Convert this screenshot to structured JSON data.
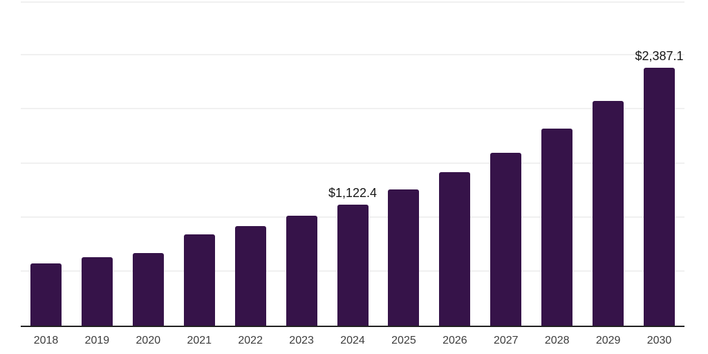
{
  "chart_data": {
    "type": "bar",
    "title": "",
    "xlabel": "",
    "ylabel": "",
    "categories": [
      "2018",
      "2019",
      "2020",
      "2021",
      "2022",
      "2023",
      "2024",
      "2025",
      "2026",
      "2027",
      "2028",
      "2029",
      "2030"
    ],
    "values": [
      575,
      636,
      674,
      847,
      924,
      1019,
      1122.4,
      1263,
      1420,
      1601,
      1825,
      2082,
      2387.1
    ],
    "data_labels": {
      "2024": "$1,122.4",
      "2030": "$2,387.1"
    },
    "ylim": [
      0,
      3000
    ],
    "gridline_interval": 500,
    "grid": true,
    "y_axis_labels_visible": false,
    "legend": "none",
    "colors": {
      "bar": "#361349",
      "axis_line": "#212121",
      "gridline": "#f0f0f0",
      "tick_label": "#3d3d3d",
      "data_label": "#161616",
      "background": "#ffffff"
    }
  }
}
